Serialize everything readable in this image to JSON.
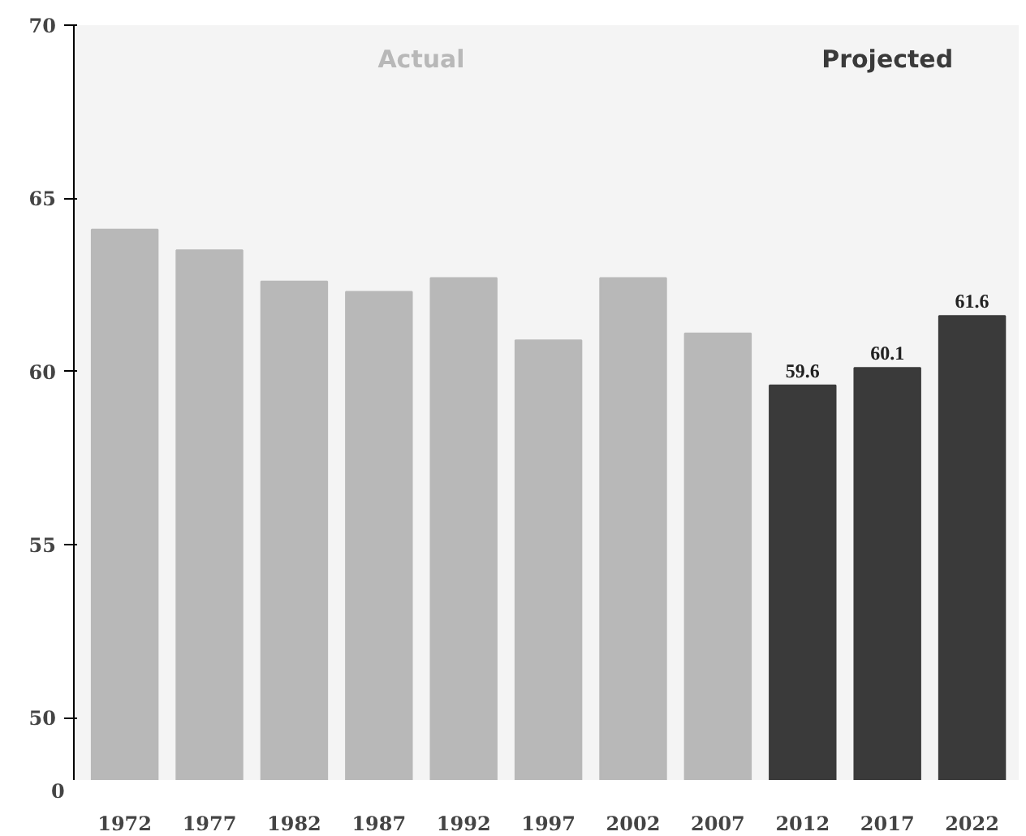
{
  "chart_data": {
    "type": "bar",
    "annotations": [
      "0"
    ],
    "categories": [
      "1972",
      "1977",
      "1982",
      "1987",
      "1992",
      "1997",
      "2002",
      "2007",
      "2012",
      "2017",
      "2022"
    ],
    "series": [
      {
        "name": "Actual",
        "color": "#b8b8b8",
        "values": [
          64.1,
          63.5,
          62.6,
          62.3,
          62.7,
          60.9,
          62.7,
          61.1,
          null,
          null,
          null
        ]
      },
      {
        "name": "Projected",
        "color": "#3a3a3a",
        "values": [
          null,
          null,
          null,
          null,
          null,
          null,
          null,
          null,
          59.6,
          60.1,
          61.6
        ],
        "value_labels": [
          null,
          null,
          null,
          null,
          null,
          null,
          null,
          null,
          "59.6",
          "60.1",
          "61.6"
        ]
      }
    ],
    "ylim": [
      48.2,
      70
    ],
    "yticks": [
      50,
      55,
      60,
      65,
      70
    ],
    "grid": false,
    "legend": "top"
  }
}
